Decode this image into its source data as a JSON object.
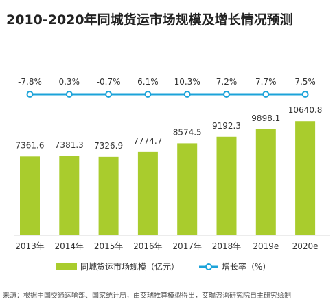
{
  "title": "2010-2020年同城货运市场规模及增长情况预测",
  "source": "来源：根据中国交通运输部、国家统计局，由艾瑞推算模型得出，艾瑞咨询研究院自主研究绘制",
  "colors": {
    "bar": "#a9cc2d",
    "line": "#1ca3d9",
    "text": "#333333"
  },
  "chart_data": {
    "type": "bar",
    "categories": [
      "2013年",
      "2014年",
      "2015年",
      "2016年",
      "2017年",
      "2018年",
      "2019e",
      "2020e"
    ],
    "series": [
      {
        "name": "同城货运市场规模（亿元）",
        "type": "bar",
        "values": [
          7361.6,
          7381.3,
          7326.9,
          7774.7,
          8574.5,
          9192.3,
          9898.1,
          10640.8
        ],
        "labels": [
          "7361.6",
          "7381.3",
          "7326.9",
          "7774.7",
          "8574.5",
          "9192.3",
          "9898.1",
          "10640.8"
        ]
      },
      {
        "name": "增长率（%）",
        "type": "line",
        "values": [
          -7.8,
          0.3,
          -0.7,
          6.1,
          10.3,
          7.2,
          7.7,
          7.5
        ],
        "labels": [
          "-7.8%",
          "0.3%",
          "-0.7%",
          "6.1%",
          "10.3%",
          "7.2%",
          "7.7%",
          "7.5%"
        ]
      }
    ],
    "legend_position": "bottom",
    "grid": false
  }
}
